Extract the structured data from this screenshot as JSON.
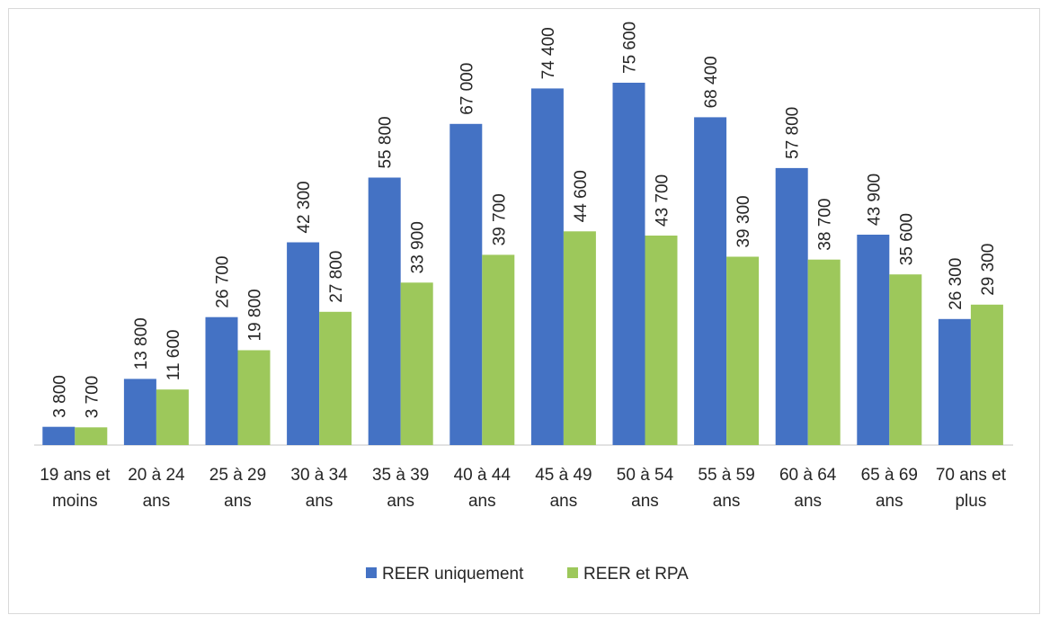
{
  "chart_data": {
    "type": "bar",
    "title": "",
    "xlabel": "",
    "ylabel": "",
    "ylim": [
      0,
      80000
    ],
    "grid": false,
    "legend_position": "bottom",
    "categories": [
      [
        "19 ans et",
        "moins"
      ],
      [
        "20 à 24",
        "ans"
      ],
      [
        "25 à 29",
        "ans"
      ],
      [
        "30 à 34",
        "ans"
      ],
      [
        "35 à 39",
        "ans"
      ],
      [
        "40 à 44",
        "ans"
      ],
      [
        "45 à 49",
        "ans"
      ],
      [
        "50 à 54",
        "ans"
      ],
      [
        "55 à 59",
        "ans"
      ],
      [
        "60 à 64",
        "ans"
      ],
      [
        "65 à 69",
        "ans"
      ],
      [
        "70 ans et",
        "plus"
      ]
    ],
    "series": [
      {
        "name": "REER uniquement",
        "color": "#4472c4",
        "values": [
          3800,
          13800,
          26700,
          42300,
          55800,
          67000,
          74400,
          75600,
          68400,
          57800,
          43900,
          26300
        ],
        "labels": [
          "3 800",
          "13 800",
          "26 700",
          "42 300",
          "55 800",
          "67 000",
          "74 400",
          "75 600",
          "68 400",
          "57 800",
          "43 900",
          "26 300"
        ]
      },
      {
        "name": "REER et RPA",
        "color": "#9dc85b",
        "values": [
          3700,
          11600,
          19800,
          27800,
          33900,
          39700,
          44600,
          43700,
          39300,
          38700,
          35600,
          29300
        ],
        "labels": [
          "3 700",
          "11 600",
          "19 800",
          "27 800",
          "33 900",
          "39 700",
          "44 600",
          "43 700",
          "39 300",
          "38 700",
          "35 600",
          "29 300"
        ]
      }
    ]
  }
}
